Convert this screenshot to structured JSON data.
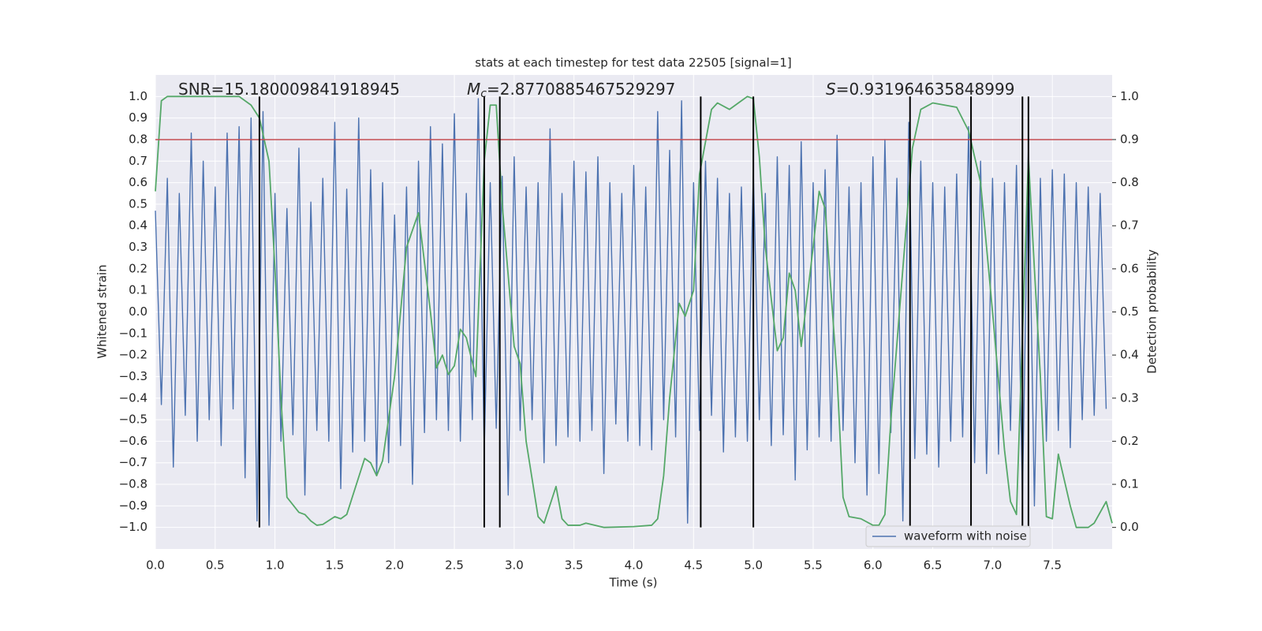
{
  "chart_data": {
    "type": "line",
    "title": "stats at each timestep for test data 22505 [signal=1]",
    "x_label": "Time (s)",
    "y_label": "Whitened strain",
    "y2_label": "Detection probability",
    "xlim": [
      0,
      8
    ],
    "ylim": [
      -1.1,
      1.1
    ],
    "y2lim": [
      -0.05,
      1.05
    ],
    "grid": true,
    "xticks": [
      {
        "value": 0,
        "label": "0.0"
      },
      0.5,
      {
        "value": 1,
        "label": "1.0"
      },
      1.5,
      {
        "value": 2,
        "label": "2.0"
      },
      2.5,
      {
        "value": 3,
        "label": "3.0"
      },
      3.5,
      {
        "value": 4,
        "label": "4.0"
      },
      4.5,
      {
        "value": 5,
        "label": "5.0"
      },
      5.5,
      {
        "value": 6,
        "label": "6.0"
      },
      6.5,
      {
        "value": 7,
        "label": "7.0"
      },
      7.5
    ],
    "yticks": [
      {
        "value": -1,
        "label": "−1.0"
      },
      {
        "value": -0.9,
        "label": "−0.9"
      },
      {
        "value": -0.8,
        "label": "−0.8"
      },
      {
        "value": -0.7,
        "label": "−0.7"
      },
      {
        "value": -0.6,
        "label": "−0.6"
      },
      {
        "value": -0.5,
        "label": "−0.5"
      },
      {
        "value": -0.4,
        "label": "−0.4"
      },
      {
        "value": -0.3,
        "label": "−0.3"
      },
      {
        "value": -0.2,
        "label": "−0.2"
      },
      {
        "value": -0.1,
        "label": "−0.1"
      },
      {
        "value": 0,
        "label": "0.0"
      },
      0.1,
      0.2,
      0.3,
      0.4,
      0.5,
      0.6,
      0.7,
      0.8,
      0.9,
      {
        "value": 1,
        "label": "1.0"
      }
    ],
    "y2ticks": [
      {
        "value": 0,
        "label": "0.0"
      },
      0.1,
      0.2,
      0.3,
      0.4,
      0.5,
      0.6,
      0.7,
      0.8,
      0.9,
      {
        "value": 1,
        "label": "1.0"
      }
    ],
    "annotations": [
      {
        "text": "SNR=15.180009841918945"
      },
      {
        "symbol": "M",
        "sub": "c",
        "text": "=2.8770885467529297"
      },
      {
        "symbol": "S",
        "text": "=0.931964635848999"
      }
    ],
    "legend": "lower right",
    "vlines": [
      0.87,
      2.75,
      2.88,
      4.56,
      5.0,
      6.31,
      6.82,
      7.25,
      7.3
    ],
    "vline_color": "#000000",
    "hlines": [
      {
        "value": 0.8,
        "color": "#c44e52"
      }
    ],
    "series": [
      {
        "name": "waveform with noise",
        "color": "#4c72b0",
        "x": [
          0,
          0.05,
          0.1,
          0.15,
          0.2,
          0.25,
          0.3,
          0.35,
          0.4,
          0.45,
          0.5,
          0.55,
          0.6,
          0.65,
          0.7,
          0.75,
          0.8,
          0.85,
          0.9,
          0.95,
          1,
          1.05,
          1.1,
          1.15,
          1.2,
          1.25,
          1.3,
          1.35,
          1.4,
          1.45,
          1.5,
          1.55,
          1.6,
          1.65,
          1.7,
          1.75,
          1.8,
          1.85,
          1.9,
          1.95,
          2,
          2.05,
          2.1,
          2.15,
          2.2,
          2.25,
          2.3,
          2.35,
          2.4,
          2.45,
          2.5,
          2.55,
          2.6,
          2.65,
          2.7,
          2.75,
          2.8,
          2.85,
          2.9,
          2.95,
          3,
          3.05,
          3.1,
          3.15,
          3.2,
          3.25,
          3.3,
          3.35,
          3.4,
          3.45,
          3.5,
          3.55,
          3.6,
          3.65,
          3.7,
          3.75,
          3.8,
          3.85,
          3.9,
          3.95,
          4,
          4.05,
          4.1,
          4.15,
          4.2,
          4.25,
          4.3,
          4.35,
          4.4,
          4.45,
          4.5,
          4.55,
          4.6,
          4.65,
          4.7,
          4.75,
          4.8,
          4.85,
          4.9,
          4.95,
          5,
          5.05,
          5.1,
          5.15,
          5.2,
          5.25,
          5.3,
          5.35,
          5.4,
          5.45,
          5.5,
          5.55,
          5.6,
          5.65,
          5.7,
          5.75,
          5.8,
          5.85,
          5.9,
          5.95,
          6,
          6.05,
          6.1,
          6.15,
          6.2,
          6.25,
          6.3,
          6.35,
          6.4,
          6.45,
          6.5,
          6.55,
          6.6,
          6.65,
          6.7,
          6.75,
          6.8,
          6.85,
          6.9,
          6.95,
          7,
          7.05,
          7.1,
          7.15,
          7.2,
          7.25,
          7.3,
          7.35,
          7.4,
          7.45,
          7.5,
          7.55,
          7.6,
          7.65,
          7.7,
          7.75,
          7.8,
          7.85,
          7.9,
          7.95
        ],
        "values": [
          0.47,
          -0.43,
          0.62,
          -0.72,
          0.55,
          -0.48,
          0.83,
          -0.6,
          0.7,
          -0.5,
          0.58,
          -0.62,
          0.83,
          -0.45,
          0.86,
          -0.77,
          0.9,
          -0.97,
          0.93,
          -0.99,
          0.55,
          -0.6,
          0.48,
          -0.57,
          0.76,
          -0.85,
          0.51,
          -0.55,
          0.62,
          -0.6,
          0.88,
          -0.82,
          0.57,
          -0.65,
          0.9,
          -0.6,
          0.66,
          -0.76,
          0.6,
          -0.7,
          0.45,
          -0.62,
          0.58,
          -0.8,
          0.7,
          -0.56,
          0.86,
          -0.5,
          0.78,
          -0.55,
          0.92,
          -0.6,
          0.55,
          -0.5,
          0.99,
          -0.65,
          0.6,
          -0.54,
          0.63,
          -0.85,
          0.72,
          -0.55,
          0.58,
          -0.5,
          0.6,
          -0.7,
          0.85,
          -0.62,
          0.55,
          -0.58,
          0.7,
          -0.6,
          0.65,
          -0.55,
          0.72,
          -0.75,
          0.6,
          -0.52,
          0.55,
          -0.6,
          0.68,
          -0.62,
          0.58,
          -0.64,
          0.93,
          -0.5,
          0.75,
          -0.58,
          0.98,
          -0.98,
          0.6,
          -0.55,
          0.7,
          -0.48,
          0.62,
          -0.65,
          0.55,
          -0.58,
          0.58,
          -0.6,
          0.65,
          -0.5,
          0.55,
          -0.62,
          0.72,
          -0.57,
          0.68,
          -0.78,
          0.79,
          -0.64,
          0.6,
          -0.58,
          0.66,
          -0.6,
          0.82,
          -0.55,
          0.58,
          -0.7,
          0.6,
          -0.85,
          0.72,
          -0.75,
          0.8,
          -0.56,
          0.62,
          -0.97,
          0.88,
          -0.68,
          0.7,
          -0.66,
          0.6,
          -0.72,
          0.58,
          -0.6,
          0.64,
          -0.58,
          0.86,
          -0.7,
          0.7,
          -0.75,
          0.62,
          -0.66,
          0.6,
          -0.55,
          0.68,
          -0.86,
          0.78,
          -0.9,
          0.62,
          -0.6,
          0.66,
          -0.55,
          0.64,
          -0.63,
          0.6,
          -0.5,
          0.58,
          -0.48,
          0.55,
          -0.45
        ]
      },
      {
        "color": "#55a868",
        "axis": "y2",
        "x": [
          0,
          0.05,
          0.1,
          0.7,
          0.8,
          0.87,
          0.95,
          1,
          1.05,
          1.1,
          1.2,
          1.25,
          1.3,
          1.35,
          1.4,
          1.5,
          1.55,
          1.6,
          1.75,
          1.8,
          1.85,
          1.9,
          2,
          2.1,
          2.2,
          2.3,
          2.35,
          2.4,
          2.45,
          2.5,
          2.55,
          2.6,
          2.68,
          2.75,
          2.8,
          2.85,
          2.9,
          3,
          3.05,
          3.1,
          3.2,
          3.25,
          3.35,
          3.4,
          3.45,
          3.55,
          3.6,
          3.75,
          4,
          4.15,
          4.2,
          4.25,
          4.3,
          4.38,
          4.43,
          4.5,
          4.55,
          4.65,
          4.7,
          4.8,
          4.9,
          4.95,
          5,
          5.05,
          5.1,
          5.2,
          5.25,
          5.3,
          5.35,
          5.4,
          5.5,
          5.55,
          5.6,
          5.7,
          5.75,
          5.8,
          5.9,
          6,
          6.05,
          6.1,
          6.15,
          6.25,
          6.33,
          6.4,
          6.5,
          6.7,
          6.8,
          6.9,
          7,
          7.1,
          7.15,
          7.2,
          7.3,
          7.35,
          7.4,
          7.45,
          7.5,
          7.55,
          7.65,
          7.7,
          7.8,
          7.85,
          7.95,
          8
        ],
        "values": [
          0.78,
          0.99,
          1.0,
          1.0,
          0.98,
          0.95,
          0.85,
          0.6,
          0.3,
          0.07,
          0.035,
          0.03,
          0.015,
          0.005,
          0.007,
          0.025,
          0.02,
          0.03,
          0.16,
          0.15,
          0.12,
          0.155,
          0.35,
          0.65,
          0.73,
          0.5,
          0.37,
          0.4,
          0.355,
          0.375,
          0.46,
          0.44,
          0.35,
          0.85,
          0.98,
          0.98,
          0.75,
          0.42,
          0.38,
          0.2,
          0.025,
          0.01,
          0.095,
          0.02,
          0.005,
          0.005,
          0.01,
          0.0,
          0.002,
          0.005,
          0.02,
          0.12,
          0.3,
          0.52,
          0.49,
          0.55,
          0.82,
          0.97,
          0.985,
          0.97,
          0.99,
          1.0,
          0.995,
          0.86,
          0.65,
          0.41,
          0.44,
          0.59,
          0.55,
          0.42,
          0.65,
          0.78,
          0.74,
          0.35,
          0.07,
          0.025,
          0.02,
          0.005,
          0.005,
          0.03,
          0.25,
          0.6,
          0.88,
          0.97,
          0.985,
          0.975,
          0.92,
          0.8,
          0.5,
          0.18,
          0.06,
          0.03,
          0.86,
          0.6,
          0.35,
          0.025,
          0.02,
          0.17,
          0.05,
          0.0,
          0.0,
          0.01,
          0.06,
          0.01
        ]
      }
    ]
  }
}
